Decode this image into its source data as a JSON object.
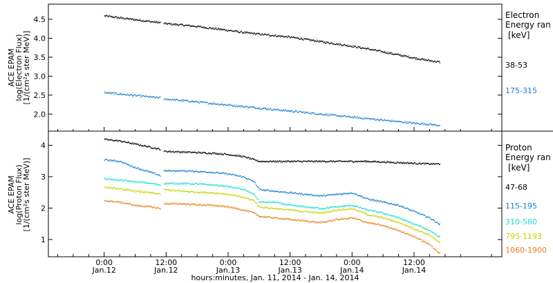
{
  "chart_data": [
    {
      "type": "scatter",
      "panel": "electron",
      "ylabel_lines": [
        "ACE EPAM",
        "log(Electron Flux)",
        "[1/(cm²s ster MeV)]"
      ],
      "ylim": [
        1.55,
        4.9
      ],
      "yticks": [
        "2.0",
        "2.5",
        "3.0",
        "3.5",
        "4.0",
        "4.5"
      ],
      "legend": {
        "title_lines": [
          "Electron",
          "Energy ran",
          "[keV]"
        ],
        "placement": "right"
      },
      "series": [
        {
          "name": "38-53",
          "color": "#000000",
          "x": [
            0,
            3,
            6,
            9,
            10.8,
            11.5,
            15,
            18,
            21,
            24,
            27,
            30,
            33,
            36,
            39,
            42,
            45,
            48,
            51,
            54,
            57,
            60,
            63,
            65
          ],
          "y": [
            4.6,
            4.55,
            4.5,
            4.45,
            4.42,
            4.4,
            4.36,
            4.32,
            4.27,
            4.22,
            4.16,
            4.12,
            4.08,
            4.04,
            3.98,
            3.92,
            3.86,
            3.8,
            3.73,
            3.65,
            3.57,
            3.49,
            3.42,
            3.38
          ]
        },
        {
          "name": "175-315",
          "color": "#1a7fd4",
          "x": [
            0,
            3,
            6,
            9,
            10.8,
            11.5,
            15,
            18,
            21,
            24,
            27,
            30,
            33,
            36,
            39,
            42,
            45,
            48,
            51,
            54,
            57,
            60,
            63,
            65
          ],
          "y": [
            2.58,
            2.54,
            2.5,
            2.46,
            2.44,
            2.41,
            2.37,
            2.33,
            2.29,
            2.25,
            2.21,
            2.17,
            2.13,
            2.09,
            2.05,
            2.01,
            1.97,
            1.93,
            1.89,
            1.85,
            1.81,
            1.77,
            1.74,
            1.71
          ]
        }
      ]
    },
    {
      "type": "scatter",
      "panel": "proton",
      "ylabel_lines": [
        "ACE EPAM",
        "log(Proton Flux)",
        "[1/(cm²s ster MeV)]"
      ],
      "ylim": [
        0.45,
        4.45
      ],
      "yticks": [
        "1",
        "2",
        "3",
        "4"
      ],
      "legend": {
        "title_lines": [
          "Proton",
          "Energy ran",
          "[keV]"
        ],
        "placement": "right"
      },
      "series": [
        {
          "name": "47-68",
          "color": "#000000",
          "x": [
            0,
            3,
            6,
            9,
            10.8,
            11.5,
            15,
            18,
            21,
            24,
            27,
            29,
            30,
            33,
            36,
            39,
            42,
            45,
            48,
            51,
            54,
            57,
            60,
            63,
            65
          ],
          "y": [
            4.2,
            4.15,
            4.05,
            3.95,
            3.88,
            3.82,
            3.8,
            3.78,
            3.76,
            3.72,
            3.65,
            3.55,
            3.5,
            3.5,
            3.5,
            3.5,
            3.5,
            3.5,
            3.5,
            3.5,
            3.48,
            3.46,
            3.44,
            3.42,
            3.42
          ]
        },
        {
          "name": "115-195",
          "color": "#1a7fd4",
          "x": [
            0,
            3,
            6,
            9,
            10.8,
            11.5,
            15,
            18,
            21,
            24,
            27,
            29,
            30,
            33,
            36,
            39,
            42,
            45,
            48,
            51,
            54,
            57,
            60,
            63,
            65
          ],
          "y": [
            3.55,
            3.5,
            3.3,
            3.15,
            3.05,
            3.2,
            3.2,
            3.18,
            3.15,
            3.1,
            3.0,
            2.85,
            2.6,
            2.55,
            2.5,
            2.45,
            2.4,
            2.45,
            2.5,
            2.3,
            2.2,
            2.1,
            1.9,
            1.7,
            1.48
          ]
        },
        {
          "name": "310-580",
          "color": "#22dccc",
          "x": [
            0,
            3,
            6,
            9,
            10.8,
            11.5,
            15,
            18,
            21,
            24,
            27,
            29,
            30,
            33,
            36,
            39,
            42,
            45,
            48,
            51,
            54,
            57,
            60,
            63,
            65
          ],
          "y": [
            2.95,
            2.9,
            2.85,
            2.8,
            2.75,
            2.8,
            2.8,
            2.78,
            2.75,
            2.7,
            2.6,
            2.45,
            2.2,
            2.2,
            2.1,
            2.05,
            2.0,
            2.05,
            2.1,
            1.95,
            1.85,
            1.7,
            1.5,
            1.3,
            1.08
          ]
        },
        {
          "name": "795-1193",
          "color": "#c8d400",
          "x": [
            0,
            3,
            6,
            9,
            10.8,
            11.5,
            15,
            18,
            21,
            24,
            27,
            29,
            30,
            33,
            36,
            39,
            42,
            45,
            48,
            51,
            54,
            57,
            60,
            63,
            65
          ],
          "y": [
            2.68,
            2.62,
            2.55,
            2.5,
            2.45,
            2.6,
            2.55,
            2.52,
            2.5,
            2.45,
            2.35,
            2.25,
            2.05,
            2.0,
            1.95,
            1.9,
            1.85,
            1.95,
            2.0,
            1.8,
            1.7,
            1.55,
            1.35,
            1.15,
            0.88
          ]
        },
        {
          "name": "1060-1900",
          "color": "#ef7f1a",
          "x": [
            0,
            3,
            6,
            9,
            10.8,
            11.5,
            15,
            18,
            21,
            24,
            27,
            29,
            30,
            33,
            36,
            39,
            42,
            45,
            48,
            51,
            54,
            57,
            60,
            63,
            65
          ],
          "y": [
            2.25,
            2.2,
            2.1,
            2.05,
            2.0,
            2.15,
            2.15,
            2.12,
            2.1,
            2.05,
            1.95,
            1.85,
            1.75,
            1.7,
            1.65,
            1.6,
            1.55,
            1.65,
            1.7,
            1.55,
            1.45,
            1.3,
            1.1,
            0.85,
            0.55
          ]
        }
      ]
    }
  ],
  "x_axis": {
    "range_hours": [
      -10.8,
      77
    ],
    "ticks": [
      {
        "hour": 0,
        "time": "0:00",
        "date": "Jan.12"
      },
      {
        "hour": 12,
        "time": "12:00",
        "date": "Jan.12"
      },
      {
        "hour": 24,
        "time": "0:00",
        "date": "Jan.13"
      },
      {
        "hour": 36,
        "time": "12:00",
        "date": "Jan.13"
      },
      {
        "hour": 48,
        "time": "0:00",
        "date": "Jan.14"
      },
      {
        "hour": 60,
        "time": "12:00",
        "date": "Jan.14"
      }
    ],
    "xlabel": "hours:minutes, Jan. 11, 2014 - Jan. 14, 2014"
  }
}
